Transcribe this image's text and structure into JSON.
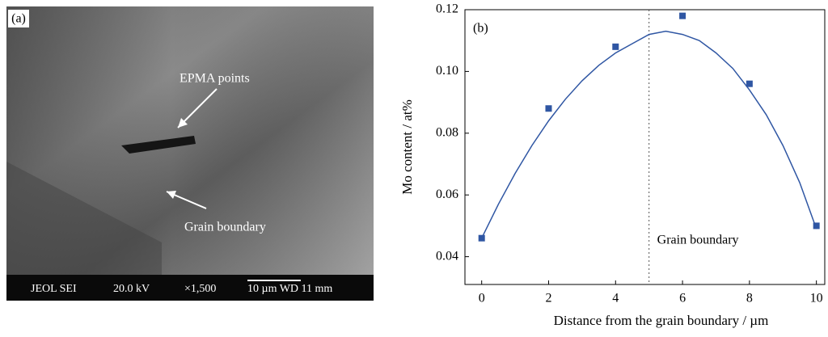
{
  "panel_a": {
    "label": "(a)",
    "annotations": [
      "EPMA points",
      "Grain boundary"
    ],
    "info_bar": [
      "JEOL SEI",
      "20.0 kV",
      "×1,500",
      "10 µm WD 11 mm"
    ]
  },
  "chart_data": {
    "type": "scatter",
    "label": "(b)",
    "x_label": "Distance from the grain boundary / µm",
    "y_label": "Mo content / at%",
    "annotation": "Grain boundary",
    "boundary_x": 5,
    "xlim": [
      -0.5,
      10.25
    ],
    "ylim": [
      0.031,
      0.12
    ],
    "xticks": [
      0,
      2,
      4,
      6,
      8,
      10
    ],
    "yticks": [
      0.04,
      0.06,
      0.08,
      {
        "value": 0.1,
        "label": "0.10"
      },
      0.12
    ],
    "series": [
      {
        "marker": "square",
        "color": "#2f56a3",
        "x": [
          0,
          2,
          4,
          6,
          8,
          10
        ],
        "values": [
          0.046,
          0.088,
          0.108,
          0.118,
          0.096,
          0.05
        ]
      },
      {
        "marker": "line",
        "color": "#2f56a3",
        "x": [
          0,
          0.5,
          1,
          1.5,
          2,
          2.5,
          3,
          3.5,
          4,
          4.5,
          5,
          5.5,
          6,
          6.5,
          7,
          7.5,
          8,
          8.5,
          9,
          9.5,
          10
        ],
        "values": [
          0.046,
          0.057,
          0.067,
          0.076,
          0.084,
          0.091,
          0.097,
          0.102,
          0.106,
          0.109,
          0.112,
          0.113,
          0.112,
          0.11,
          0.106,
          0.101,
          0.094,
          0.086,
          0.076,
          0.064,
          0.049
        ]
      }
    ]
  }
}
